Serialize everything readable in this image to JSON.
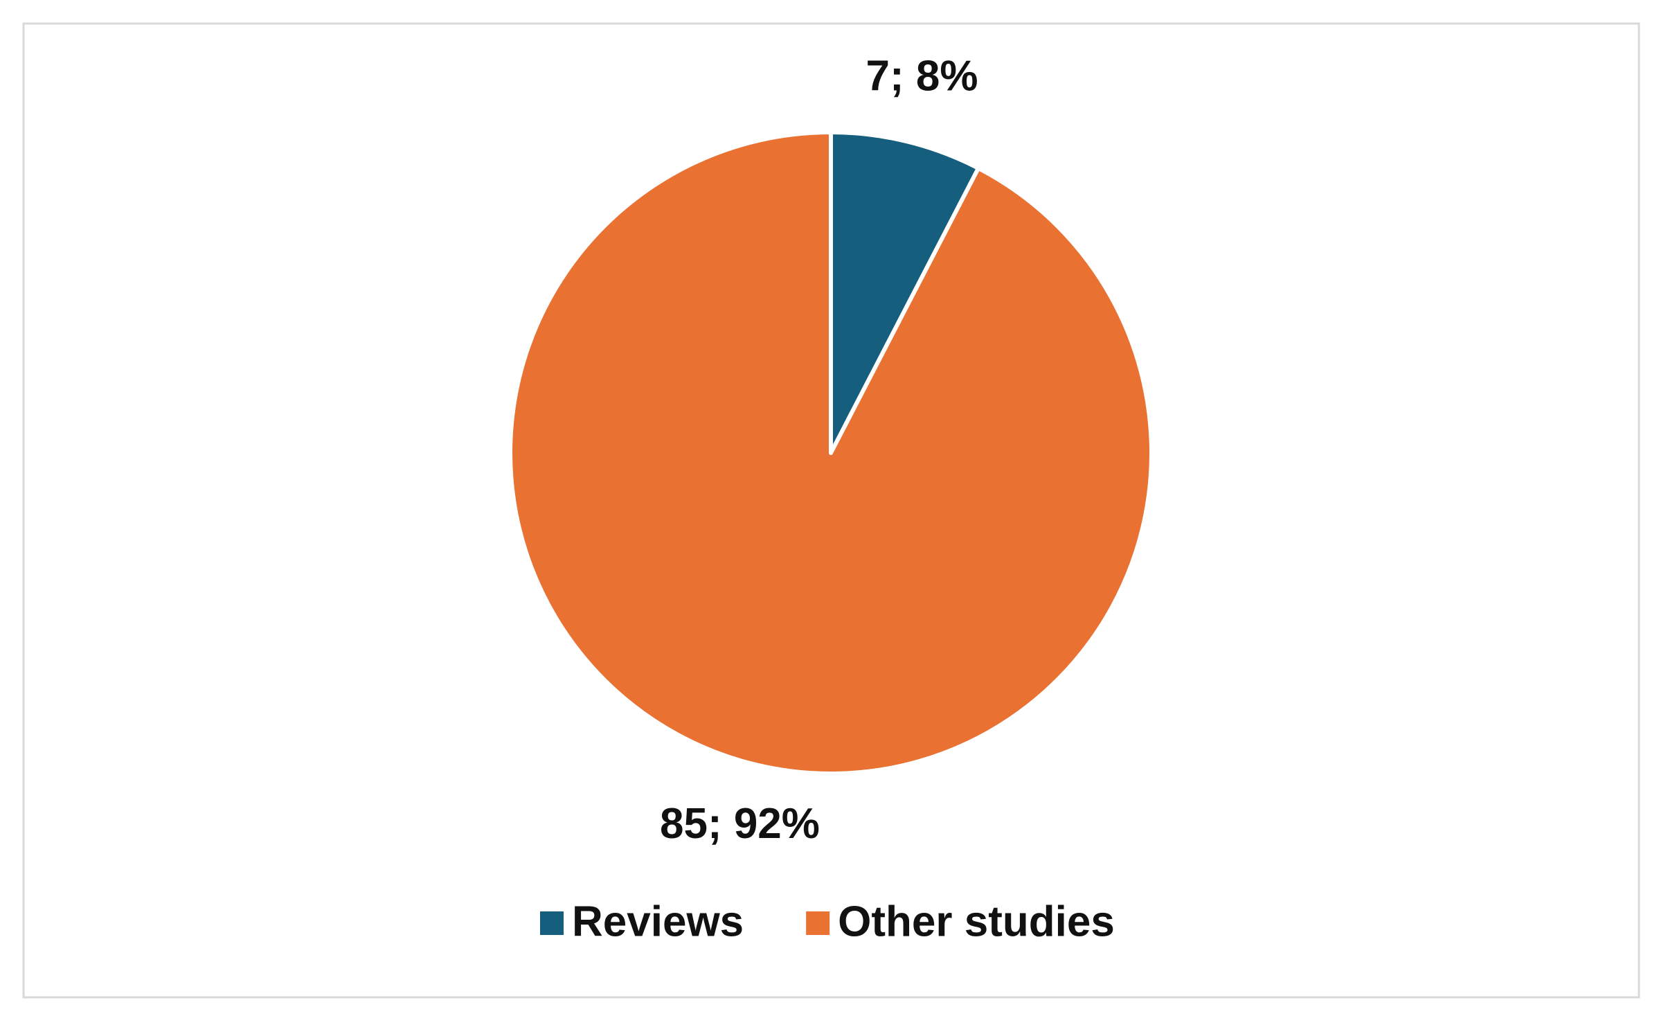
{
  "chart_data": {
    "type": "pie",
    "categories": [
      "Reviews",
      "Other studies"
    ],
    "values": [
      7,
      85
    ],
    "value_labels": [
      "7; 8%",
      "85; 92%"
    ],
    "colors": [
      "#155e7e",
      "#e97132"
    ],
    "legend": "bottom"
  }
}
